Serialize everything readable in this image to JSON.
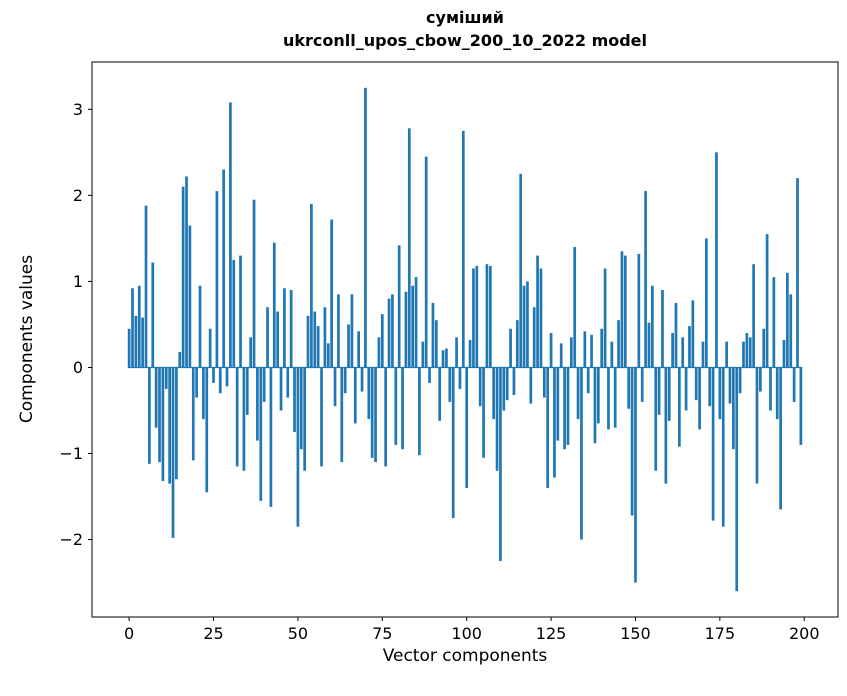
{
  "figure": {
    "title_line1": "суміший",
    "title_line2": "ukrconll_upos_cbow_200_10_2022 model",
    "xlabel": "Vector components",
    "ylabel": "Components values"
  },
  "chart_data": {
    "type": "bar",
    "title": "суміший — ukrconll_upos_cbow_200_10_2022 model",
    "xlabel": "Vector components",
    "ylabel": "Components values",
    "legend": "none",
    "grid": false,
    "bar_color": "#1f77b4",
    "axis_color": "#000000",
    "bar_width": 0.8,
    "xlim": [
      -11,
      210
    ],
    "ylim": [
      -2.9,
      3.55
    ],
    "xticks": [
      0,
      25,
      50,
      75,
      100,
      125,
      150,
      175,
      200
    ],
    "ytick_values": [
      -2,
      -1,
      0,
      1,
      2,
      3
    ],
    "ytick_labels": [
      "−2",
      "−1",
      "0",
      "1",
      "2",
      "3"
    ],
    "values": [
      0.45,
      0.92,
      0.6,
      0.95,
      0.58,
      1.88,
      -1.12,
      1.22,
      -0.7,
      -1.1,
      -1.32,
      -0.25,
      -1.35,
      -1.98,
      -1.3,
      0.18,
      2.1,
      2.22,
      1.65,
      -1.08,
      -0.35,
      0.95,
      -0.6,
      -1.45,
      0.45,
      -0.18,
      2.05,
      -0.3,
      2.3,
      -0.22,
      3.08,
      1.25,
      -1.15,
      1.3,
      -1.2,
      -0.55,
      0.35,
      1.95,
      -0.85,
      -1.55,
      -0.4,
      0.7,
      -1.62,
      1.45,
      0.65,
      -0.5,
      0.92,
      -0.35,
      0.9,
      -0.75,
      -1.85,
      -0.95,
      -1.2,
      0.6,
      1.9,
      0.65,
      0.48,
      -1.15,
      0.7,
      0.28,
      1.72,
      -0.45,
      0.85,
      -1.1,
      -0.3,
      0.5,
      0.85,
      -0.65,
      0.42,
      -0.28,
      3.25,
      -0.6,
      -1.05,
      -1.1,
      0.35,
      0.62,
      -1.15,
      0.8,
      0.85,
      -0.9,
      1.42,
      -0.95,
      0.88,
      2.78,
      0.95,
      1.05,
      -1.02,
      0.3,
      2.45,
      -0.18,
      0.75,
      0.55,
      -0.62,
      0.2,
      0.22,
      -0.4,
      -1.75,
      0.35,
      -0.25,
      2.75,
      -1.4,
      0.32,
      1.15,
      1.18,
      -0.45,
      -1.05,
      1.2,
      1.18,
      -0.6,
      -1.2,
      -2.25,
      -0.5,
      -0.38,
      0.45,
      -0.32,
      0.55,
      2.25,
      0.95,
      1.0,
      -0.42,
      0.7,
      1.3,
      1.15,
      -0.35,
      -1.4,
      0.4,
      -1.28,
      -0.85,
      0.28,
      -0.95,
      -0.9,
      0.35,
      1.4,
      -0.6,
      -2.0,
      0.42,
      -0.3,
      0.38,
      -0.88,
      -0.65,
      0.45,
      1.15,
      -0.72,
      0.3,
      -0.7,
      0.55,
      1.35,
      1.3,
      -0.48,
      -1.72,
      -2.5,
      1.32,
      -0.4,
      2.05,
      0.52,
      0.95,
      -1.2,
      -0.55,
      0.9,
      -1.35,
      -0.62,
      0.4,
      0.75,
      -0.92,
      0.35,
      -0.5,
      0.48,
      0.78,
      -0.38,
      -0.72,
      0.3,
      1.5,
      -0.45,
      -1.78,
      2.5,
      -0.6,
      -1.85,
      0.3,
      -0.42,
      -0.95,
      -2.6,
      -0.3,
      0.3,
      0.4,
      0.35,
      1.2,
      -1.35,
      -0.28,
      0.45,
      1.55,
      -0.5,
      1.05,
      -0.6,
      -1.65,
      0.32,
      1.1,
      0.85,
      -0.4,
      2.2,
      -0.9
    ]
  }
}
